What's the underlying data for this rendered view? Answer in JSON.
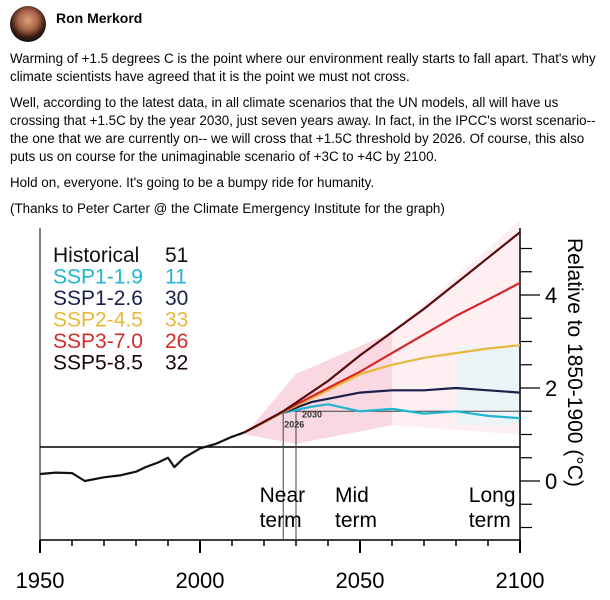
{
  "post": {
    "author": "Ron Merkord",
    "paragraphs": [
      "Warming of +1.5 degrees C is the point where our environment really starts to fall apart.  That's why climate scientists have agreed that it is the point we must not cross.",
      "Well, according to the latest data, in all climate scenarios that the UN models, all will have us crossing that +1.5C by the year 2030, just seven years away.  In fact, in the IPCC's worst scenario-- the one that we are currently on-- we will cross that +1.5C threshold by 2026.  Of course, this also puts us on course for the unimaginable scenario of +3C to +4C by 2100.",
      "Hold on, everyone.  It's going to be a bumpy ride for humanity.",
      "(Thanks to Peter Carter @ the Climate Emergency Institute for the graph)"
    ]
  },
  "chart_data": {
    "type": "line",
    "ylabel": "Relative to 1850-1900 (°C)",
    "xlim": [
      1950,
      2100
    ],
    "ylim": [
      -1.25,
      5.5
    ],
    "x_ticks": [
      "1950",
      "2000",
      "2050",
      "2100"
    ],
    "y_ticks": [
      "0",
      "2",
      "4"
    ],
    "threshold": 1.5,
    "annotations": [
      "2026",
      "2030"
    ],
    "periods": [
      {
        "l1": "Near",
        "l2": "term"
      },
      {
        "l1": "Mid",
        "l2": "term"
      },
      {
        "l1": "Long",
        "l2": "term"
      }
    ],
    "legend": [
      {
        "name": "Historical",
        "count": "51",
        "color": "#111111"
      },
      {
        "name": "SSP1-1.9",
        "count": "11",
        "color": "#1fb5d1"
      },
      {
        "name": "SSP1-2.6",
        "count": "30",
        "color": "#1a1f4d"
      },
      {
        "name": "SSP2-4.5",
        "count": "33",
        "color": "#e8b83a"
      },
      {
        "name": "SSP3-7.0",
        "count": "26",
        "color": "#d42a2a"
      },
      {
        "name": "SSP5-8.5",
        "count": "32",
        "color": "#1a0606"
      }
    ],
    "series": [
      {
        "name": "Historical",
        "color": "#111111",
        "x": [
          1950,
          1955,
          1960,
          1964,
          1970,
          1975,
          1980,
          1983,
          1987,
          1990,
          1992,
          1995,
          2000,
          2005,
          2010,
          2014
        ],
        "y": [
          0.15,
          0.18,
          0.17,
          0.0,
          0.08,
          0.12,
          0.2,
          0.3,
          0.4,
          0.5,
          0.3,
          0.5,
          0.7,
          0.8,
          0.95,
          1.05
        ]
      },
      {
        "name": "SSP1-1.9",
        "color": "#1fb5d1",
        "x": [
          2014,
          2025,
          2035,
          2040,
          2050,
          2060,
          2070,
          2080,
          2090,
          2100
        ],
        "y": [
          1.05,
          1.45,
          1.6,
          1.65,
          1.5,
          1.55,
          1.45,
          1.5,
          1.4,
          1.35
        ]
      },
      {
        "name": "SSP1-2.6",
        "color": "#1a1f4d",
        "x": [
          2014,
          2025,
          2035,
          2050,
          2060,
          2070,
          2080,
          2090,
          2100
        ],
        "y": [
          1.05,
          1.45,
          1.7,
          1.9,
          1.95,
          1.95,
          2.0,
          1.95,
          1.9
        ]
      },
      {
        "name": "SSP2-4.5",
        "color": "#e8b83a",
        "x": [
          2014,
          2025,
          2040,
          2050,
          2060,
          2070,
          2080,
          2090,
          2100
        ],
        "y": [
          1.05,
          1.45,
          1.95,
          2.3,
          2.5,
          2.65,
          2.75,
          2.85,
          2.92
        ]
      },
      {
        "name": "SSP3-7.0",
        "color": "#d42a2a",
        "x": [
          2014,
          2026,
          2040,
          2050,
          2060,
          2070,
          2080,
          2090,
          2100
        ],
        "y": [
          1.05,
          1.5,
          2.0,
          2.35,
          2.75,
          3.15,
          3.55,
          3.9,
          4.26
        ]
      },
      {
        "name": "SSP5-8.5",
        "color": "#5a0a0a",
        "x": [
          2014,
          2026,
          2040,
          2050,
          2060,
          2070,
          2080,
          2090,
          2100
        ],
        "y": [
          1.05,
          1.5,
          2.15,
          2.7,
          3.2,
          3.7,
          4.25,
          4.8,
          5.35
        ]
      }
    ]
  }
}
